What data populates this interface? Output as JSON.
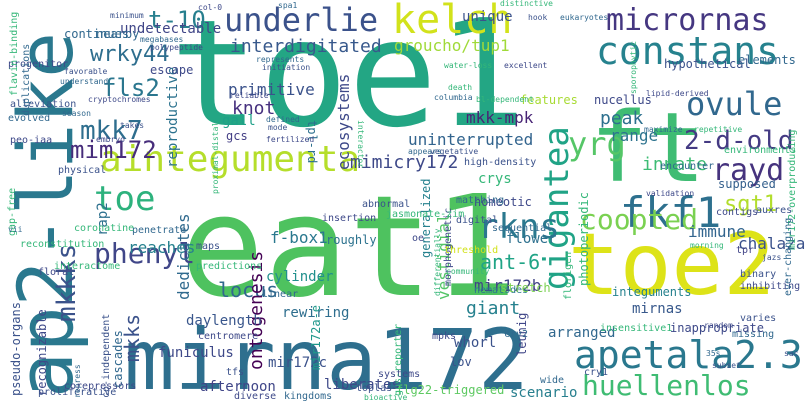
{
  "words": [
    {
      "text": "toe1",
      "color": "#23a684"
    },
    {
      "text": "eat1",
      "color": "#4ec25f"
    },
    {
      "text": "mirna172",
      "color": "#2e6f8e"
    },
    {
      "text": "ap2-like",
      "color": "#2a788e"
    },
    {
      "text": "ft",
      "color": "#3fbc73"
    },
    {
      "text": "toe2",
      "color": "#dde318"
    },
    {
      "text": "aintegumenta",
      "color": "#b5de2b"
    },
    {
      "text": "apetala2.3",
      "color": "#2a788e"
    },
    {
      "text": "kelch",
      "color": "#d2e21b"
    },
    {
      "text": "constans",
      "color": "#26828e"
    },
    {
      "text": "underlie",
      "color": "#3b528b"
    },
    {
      "text": "micrornas",
      "color": "#453781"
    },
    {
      "text": "ovule",
      "color": "#31688e"
    },
    {
      "text": "gigantea",
      "color": "#20a386"
    },
    {
      "text": "fkf1",
      "color": "#2d708e"
    },
    {
      "text": "huellenlos",
      "color": "#3fbc73"
    },
    {
      "text": "phenyl",
      "color": "#404688"
    },
    {
      "text": "mkk7",
      "color": "#2e6e8e"
    },
    {
      "text": "mim172",
      "color": "#472d7b"
    },
    {
      "text": "yrg",
      "color": "#55c667"
    },
    {
      "text": "rayd",
      "color": "#46337e"
    },
    {
      "text": "2-d-old",
      "color": "#443a83"
    },
    {
      "text": "rkns",
      "color": "#2a788e"
    },
    {
      "text": "mkkks",
      "color": "#3b528b"
    },
    {
      "text": "coopted",
      "color": "#7ad151"
    },
    {
      "text": "toe",
      "color": "#2db27d"
    },
    {
      "text": "t-10",
      "color": "#277f8e"
    },
    {
      "text": "fls2",
      "color": "#2a768e"
    },
    {
      "text": "wrky44",
      "color": "#2e6e8e"
    },
    {
      "text": "interdigitated",
      "color": "#38598c"
    },
    {
      "text": "groucho/tup1",
      "color": "#a0da39"
    },
    {
      "text": "mimicry172",
      "color": "#3e4989"
    },
    {
      "text": "knot",
      "color": "#46307e"
    },
    {
      "text": "peak",
      "color": "#2d708e"
    },
    {
      "text": "innate",
      "color": "#3dbc74"
    },
    {
      "text": "sgt1",
      "color": "#b2dd2d"
    },
    {
      "text": "mkks",
      "color": "#3b528b"
    },
    {
      "text": "ant-6",
      "color": "#20a486"
    },
    {
      "text": "locus",
      "color": "#31688e"
    },
    {
      "text": "giant",
      "color": "#26818e"
    },
    {
      "text": "vestigial",
      "color": "#54c568"
    },
    {
      "text": "mir172b",
      "color": "#414487"
    },
    {
      "text": "immune",
      "color": "#32658e"
    },
    {
      "text": "chalaza",
      "color": "#3b528b"
    },
    {
      "text": "mkk-mpk",
      "color": "#482475"
    },
    {
      "text": "uninterrupted",
      "color": "#32648e"
    },
    {
      "text": "ecosystems",
      "color": "#3e4989"
    },
    {
      "text": "range",
      "color": "#2c738e"
    },
    {
      "text": "ontogenesis",
      "color": "#440154"
    },
    {
      "text": "dedicates",
      "color": "#306a8e"
    },
    {
      "text": "f-box1",
      "color": "#2a788e"
    },
    {
      "text": "rap2",
      "color": "#2d708e"
    },
    {
      "text": "reaches",
      "color": "#26818e"
    },
    {
      "text": "daylength",
      "color": "#39568c"
    },
    {
      "text": "funiculus",
      "color": "#3e4989"
    },
    {
      "text": "cylinder",
      "color": "#21908d"
    },
    {
      "text": "mirnas",
      "color": "#38598c"
    },
    {
      "text": "arranged",
      "color": "#31688e"
    },
    {
      "text": "whorl",
      "color": "#3b528b"
    },
    {
      "text": "rewiring",
      "color": "#2e6e8e"
    },
    {
      "text": "afternoon",
      "color": "#404688"
    },
    {
      "text": "scenario",
      "color": "#277f8e"
    },
    {
      "text": "flg22-triggered",
      "color": "#5ec962"
    },
    {
      "text": "liberates",
      "color": "#3e4989"
    },
    {
      "text": "mir172c",
      "color": "#3b528b"
    },
    {
      "text": "mir172a-e",
      "color": "#1f988b"
    },
    {
      "text": "leunig",
      "color": "#404688"
    },
    {
      "text": "flower",
      "color": "#2d708e"
    },
    {
      "text": "integuments",
      "color": "#26828e"
    },
    {
      "text": "supposed",
      "color": "#35608d"
    },
    {
      "text": "mkks-2",
      "color": "#3b528b"
    },
    {
      "text": "reproductive",
      "color": "#2c728e"
    },
    {
      "text": "primitive",
      "color": "#3b528b"
    },
    {
      "text": "gall",
      "color": "#1fa088"
    },
    {
      "text": "gcs",
      "color": "#433e85"
    },
    {
      "text": "tpl-rd",
      "color": "#2d708e"
    },
    {
      "text": "crys",
      "color": "#35b779"
    },
    {
      "text": "homeotic",
      "color": "#3e4989"
    },
    {
      "text": "generalized",
      "color": "#26818e"
    },
    {
      "text": "roughly",
      "color": "#2c728e"
    },
    {
      "text": "unique",
      "color": "#3b528b"
    },
    {
      "text": "nucellus",
      "color": "#3e4989"
    },
    {
      "text": "features",
      "color": "#a8db34"
    },
    {
      "text": "nearby",
      "color": "#31688e"
    },
    {
      "text": "escape",
      "color": "#3e4989"
    },
    {
      "text": "undetectable",
      "color": "#404688"
    },
    {
      "text": "continues",
      "color": "#31688e"
    },
    {
      "text": "hypothetical",
      "color": "#3b528b"
    },
    {
      "text": "elements",
      "color": "#31688e"
    },
    {
      "text": "progenitor",
      "color": "#3e4989"
    },
    {
      "text": "alleviation",
      "color": "#3b528b"
    },
    {
      "text": "evolved",
      "color": "#31688e"
    },
    {
      "text": "peo-iaa",
      "color": "#3e4989"
    },
    {
      "text": "penetrate",
      "color": "#31688e"
    },
    {
      "text": "insertion",
      "color": "#3e4989"
    },
    {
      "text": "abnormal",
      "color": "#3b528b"
    },
    {
      "text": "tpr",
      "color": "#414487"
    },
    {
      "text": "environments",
      "color": "#35b779"
    },
    {
      "text": "encounter",
      "color": "#31688e"
    },
    {
      "text": "pseudo-organs",
      "color": "#3b528b"
    },
    {
      "text": "recognizable",
      "color": "#3e4989"
    },
    {
      "text": "cascades",
      "color": "#31688e"
    },
    {
      "text": "proliferative",
      "color": "#3b528b"
    },
    {
      "text": "nematodes",
      "color": "#2a788e"
    },
    {
      "text": "morphogenetic",
      "color": "#3e4989"
    },
    {
      "text": "gap-free",
      "color": "#35b779"
    },
    {
      "text": "interactome",
      "color": "#35b779"
    },
    {
      "text": "reconstitution",
      "color": "#35b779"
    },
    {
      "text": "flavin-binding",
      "color": "#35b779"
    },
    {
      "text": "duplications",
      "color": "#31688e"
    },
    {
      "text": "stretch",
      "color": "#7ad151"
    },
    {
      "text": "sequential",
      "color": "#31688e"
    },
    {
      "text": "floral",
      "color": "#3e4989"
    },
    {
      "text": "high-density",
      "color": "#3b528b"
    },
    {
      "text": "photoperiodic",
      "color": "#35b779"
    },
    {
      "text": "florigen",
      "color": "#35b779"
    },
    {
      "text": "contigs",
      "color": "#3e4989"
    },
    {
      "text": "auxres",
      "color": "#3b528b"
    },
    {
      "text": "mir172-overproducing",
      "color": "#35b779"
    },
    {
      "text": "binary",
      "color": "#3b528b"
    },
    {
      "text": "inhibiting",
      "color": "#3e4989"
    },
    {
      "text": "varies",
      "color": "#3b528b"
    },
    {
      "text": "missing",
      "color": "#31688e"
    },
    {
      "text": "inappropriate",
      "color": "#3e4989"
    },
    {
      "text": "insensitive1",
      "color": "#35b779"
    },
    {
      "text": "ever-changing",
      "color": "#31688e"
    },
    {
      "text": "threshold",
      "color": "#d2e21b"
    },
    {
      "text": "jasmonate-zim",
      "color": "#35b779"
    },
    {
      "text": "matching",
      "color": "#31688e"
    },
    {
      "text": "digital",
      "color": "#3b528b"
    },
    {
      "text": "oe",
      "color": "#3e4989"
    },
    {
      "text": "lov",
      "color": "#3b528b"
    },
    {
      "text": "mpks",
      "color": "#3e4989"
    },
    {
      "text": "cry2",
      "color": "#31688e"
    },
    {
      "text": "cry1",
      "color": "#3b528b"
    },
    {
      "text": "centromere",
      "color": "#3e4989"
    },
    {
      "text": "maps",
      "color": "#3b528b"
    },
    {
      "text": "linear",
      "color": "#31688e"
    },
    {
      "text": "predictions",
      "color": "#35b779"
    },
    {
      "text": "tfs",
      "color": "#3b528b"
    },
    {
      "text": "diverse",
      "color": "#3e4989"
    },
    {
      "text": "kingdoms",
      "color": "#31688e"
    },
    {
      "text": "systems",
      "color": "#3e4989"
    },
    {
      "text": "toplas",
      "color": "#3b528b"
    },
    {
      "text": "gus-reporter",
      "color": "#35b779"
    },
    {
      "text": "wide",
      "color": "#31688e"
    },
    {
      "text": "bioactive",
      "color": "#35b779"
    },
    {
      "text": "co-independent",
      "color": "#3b528b"
    },
    {
      "text": "repress",
      "color": "#31688e"
    },
    {
      "text": "corepressors",
      "color": "#3e4989"
    },
    {
      "text": "physical",
      "color": "#3b528b"
    },
    {
      "text": "coronatine",
      "color": "#35b779"
    },
    {
      "text": "embryo",
      "color": "#3e4989"
    },
    {
      "text": "season",
      "color": "#31688e"
    },
    {
      "text": "takes",
      "color": "#3b528b"
    },
    {
      "text": "cryptochromes",
      "color": "#3e4989"
    },
    {
      "text": "understand",
      "color": "#31688e"
    },
    {
      "text": "favorable",
      "color": "#3b528b"
    },
    {
      "text": "polypeptide",
      "color": "#3e4989"
    },
    {
      "text": "megabases",
      "color": "#31688e"
    },
    {
      "text": "minimum",
      "color": "#3b528b"
    },
    {
      "text": "col-0",
      "color": "#3e4989"
    },
    {
      "text": "spa1",
      "color": "#31688e"
    },
    {
      "text": "distinctive",
      "color": "#35b779"
    },
    {
      "text": "hook",
      "color": "#3b528b"
    },
    {
      "text": "eukaryotes",
      "color": "#31688e"
    },
    {
      "text": "excellent",
      "color": "#3e4989"
    },
    {
      "text": "water-loss",
      "color": "#35b779"
    },
    {
      "text": "initiation",
      "color": "#3b528b"
    },
    {
      "text": "represents",
      "color": "#31688e"
    },
    {
      "text": "lipid-derived",
      "color": "#3e4989"
    },
    {
      "text": "death",
      "color": "#35b779"
    },
    {
      "text": "columbia",
      "color": "#31688e"
    },
    {
      "text": "bl-dependent",
      "color": "#35b779"
    },
    {
      "text": "vegetative",
      "color": "#3b528b"
    },
    {
      "text": "appears",
      "color": "#31688e"
    },
    {
      "text": "fertilized",
      "color": "#3e4989"
    },
    {
      "text": "defined",
      "color": "#31688e"
    },
    {
      "text": "mode",
      "color": "#3b528b"
    },
    {
      "text": "reliable",
      "color": "#3e4989"
    },
    {
      "text": "sporophytic",
      "color": "#35b779"
    },
    {
      "text": "maximize",
      "color": "#31688e"
    },
    {
      "text": "repetitive",
      "color": "#35b779"
    },
    {
      "text": "interactor",
      "color": "#35b779"
    },
    {
      "text": "validation",
      "color": "#3e4989"
    },
    {
      "text": "sac",
      "color": "#3b528b"
    },
    {
      "text": "35s",
      "color": "#31688e"
    },
    {
      "text": "subset",
      "color": "#3b528b"
    },
    {
      "text": "random",
      "color": "#3e4989"
    },
    {
      "text": "vii",
      "color": "#31688e"
    },
    {
      "text": "community",
      "color": "#35b779"
    },
    {
      "text": "proximal-distal",
      "color": "#35b779"
    },
    {
      "text": "differentially",
      "color": "#35b779"
    },
    {
      "text": "jazs",
      "color": "#3b528b"
    },
    {
      "text": "morning",
      "color": "#35b779"
    }
  ]
}
